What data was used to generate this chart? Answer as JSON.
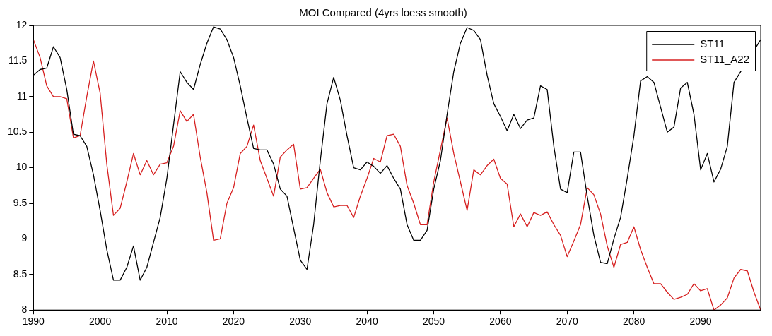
{
  "chart_data": {
    "type": "line",
    "title": "MOI Compared (4yrs loess smooth)",
    "x": [
      1990,
      1991,
      1992,
      1993,
      1994,
      1995,
      1996,
      1997,
      1998,
      1999,
      2000,
      2001,
      2002,
      2003,
      2004,
      2005,
      2006,
      2007,
      2008,
      2009,
      2010,
      2011,
      2012,
      2013,
      2014,
      2015,
      2016,
      2017,
      2018,
      2019,
      2020,
      2021,
      2022,
      2023,
      2024,
      2025,
      2026,
      2027,
      2028,
      2029,
      2030,
      2031,
      2032,
      2033,
      2034,
      2035,
      2036,
      2037,
      2038,
      2039,
      2040,
      2041,
      2042,
      2043,
      2044,
      2045,
      2046,
      2047,
      2048,
      2049,
      2050,
      2051,
      2052,
      2053,
      2054,
      2055,
      2056,
      2057,
      2058,
      2059,
      2060,
      2061,
      2062,
      2063,
      2064,
      2065,
      2066,
      2067,
      2068,
      2069,
      2070,
      2071,
      2072,
      2073,
      2074,
      2075,
      2076,
      2077,
      2078,
      2079,
      2080,
      2081,
      2082,
      2083,
      2084,
      2085,
      2086,
      2087,
      2088,
      2089,
      2090,
      2091,
      2092,
      2093,
      2094,
      2095,
      2096,
      2097,
      2098,
      2099
    ],
    "series": [
      {
        "name": "ST11",
        "color": "#000000",
        "values": [
          11.3,
          11.38,
          11.4,
          11.7,
          11.55,
          11.1,
          10.47,
          10.45,
          10.3,
          9.9,
          9.4,
          8.85,
          8.42,
          8.42,
          8.6,
          8.9,
          8.42,
          8.6,
          8.95,
          9.3,
          9.85,
          10.6,
          11.35,
          11.2,
          11.1,
          11.45,
          11.75,
          11.98,
          11.95,
          11.8,
          11.55,
          11.15,
          10.7,
          10.27,
          10.25,
          10.25,
          10.05,
          9.7,
          9.6,
          9.15,
          8.7,
          8.57,
          9.2,
          10.1,
          10.9,
          11.27,
          10.95,
          10.45,
          10.0,
          9.97,
          10.08,
          10.02,
          9.92,
          10.03,
          9.85,
          9.7,
          9.2,
          8.98,
          8.98,
          9.12,
          9.7,
          10.1,
          10.75,
          11.35,
          11.75,
          11.97,
          11.93,
          11.8,
          11.3,
          10.9,
          10.72,
          10.52,
          10.75,
          10.55,
          10.67,
          10.7,
          11.15,
          11.1,
          10.3,
          9.7,
          9.65,
          10.22,
          10.22,
          9.6,
          9.05,
          8.67,
          8.65,
          9.0,
          9.3,
          9.85,
          10.45,
          11.22,
          11.28,
          11.2,
          10.85,
          10.5,
          10.57,
          11.12,
          11.2,
          10.75,
          9.97,
          10.2,
          9.8,
          9.98,
          10.3,
          11.2,
          null,
          null,
          null,
          11.8
        ]
      },
      {
        "name": "ST11_A22",
        "color": "#d62020",
        "values": [
          11.8,
          11.55,
          11.15,
          11.0,
          11.0,
          10.97,
          10.42,
          10.45,
          11.0,
          11.5,
          11.05,
          10.05,
          9.33,
          9.43,
          9.8,
          10.2,
          9.9,
          10.1,
          9.9,
          10.05,
          10.07,
          10.3,
          10.8,
          10.65,
          10.75,
          10.15,
          9.65,
          8.98,
          9.0,
          9.5,
          9.72,
          10.2,
          10.3,
          10.6,
          10.1,
          9.85,
          9.6,
          10.15,
          10.25,
          10.33,
          9.7,
          9.72,
          9.85,
          9.98,
          9.65,
          9.45,
          9.47,
          9.47,
          9.3,
          9.6,
          9.85,
          10.13,
          10.08,
          10.45,
          10.47,
          10.3,
          9.75,
          9.5,
          9.2,
          9.2,
          9.8,
          10.25,
          10.7,
          10.2,
          9.8,
          9.4,
          9.97,
          9.9,
          10.03,
          10.12,
          9.85,
          9.77,
          9.17,
          9.35,
          9.17,
          9.37,
          9.33,
          9.38,
          9.2,
          9.05,
          8.75,
          8.97,
          9.2,
          9.72,
          9.62,
          9.35,
          8.9,
          8.6,
          8.92,
          8.95,
          9.17,
          8.85,
          8.6,
          8.37,
          8.37,
          8.25,
          8.15,
          8.18,
          8.22,
          8.37,
          8.27,
          8.3,
          8.0,
          8.07,
          8.17,
          8.45,
          8.57,
          8.55,
          8.25,
          8.0
        ]
      }
    ],
    "xlim": [
      1990,
      2099
    ],
    "xticks": [
      1990,
      2000,
      2010,
      2020,
      2030,
      2040,
      2050,
      2060,
      2070,
      2080,
      2090
    ],
    "ylim": [
      8,
      12
    ],
    "yticks": [
      8,
      8.5,
      9,
      9.5,
      10,
      10.5,
      11,
      11.5,
      12
    ],
    "grid": false,
    "legend": "top right",
    "marker": "none",
    "line_style": "solid"
  }
}
